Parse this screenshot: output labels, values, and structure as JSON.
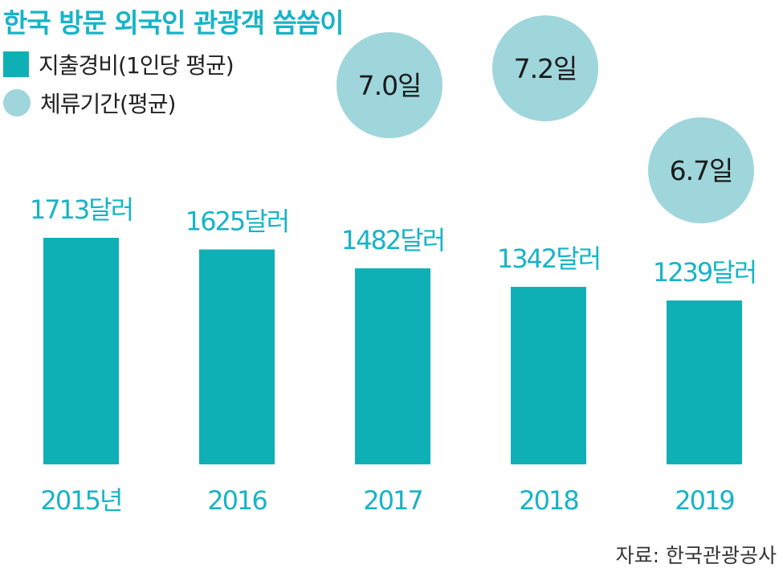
{
  "title": "한국 방문 외국인 관광객 씀씀이",
  "legend": {
    "spending": "지출경비(1인당 평균)",
    "stay": "체류기간(평균)"
  },
  "colors": {
    "bar": "#0fb0b5",
    "value_label": "#16b4c6",
    "bubble": "#9ed6dc",
    "bubble_text": "#1a1a1a"
  },
  "source": "자료: 한국관광공사",
  "chart_data": {
    "type": "bar",
    "title": "한국 방문 외국인 관광객 씀씀이",
    "categories": [
      "2015년",
      "2016",
      "2017",
      "2018",
      "2019"
    ],
    "series": [
      {
        "name": "지출경비(1인당 평균)",
        "values": [
          1713,
          1625,
          1482,
          1342,
          1239
        ],
        "labels": [
          "1713달러",
          "1625달러",
          "1482달러",
          "1342달러",
          "1239달러"
        ]
      },
      {
        "name": "체류기간(평균)",
        "values": [
          null,
          null,
          7.0,
          7.2,
          6.7
        ],
        "labels": [
          "",
          "",
          "7.0일",
          "7.2일",
          "6.7일"
        ]
      }
    ],
    "ylim": [
      0,
      1713
    ],
    "grid": false,
    "legend_position": "top-left"
  }
}
